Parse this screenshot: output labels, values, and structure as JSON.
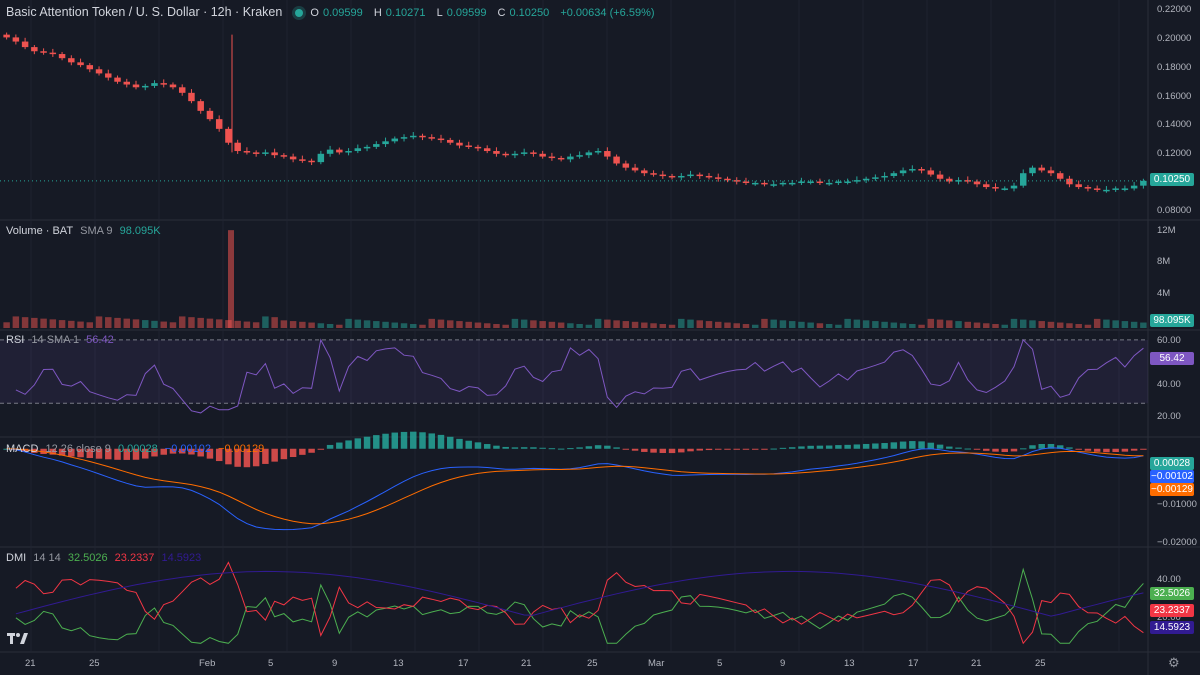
{
  "header": {
    "title": "Basic Attention Token / U. S. Dollar · 12h · Kraken",
    "o_label": "O",
    "o_value": "0.09599",
    "h_label": "H",
    "h_value": "0.10271",
    "l_label": "L",
    "l_value": "0.09599",
    "c_label": "C",
    "c_value": "0.10250",
    "change": "+0.00634 (+6.59%)"
  },
  "price_axis": [
    "0.22000",
    "0.20000",
    "0.18000",
    "0.16000",
    "0.14000",
    "0.12000",
    "0.10250",
    "0.08000"
  ],
  "last_price_tag": "0.10250",
  "volume": {
    "label": "Volume · BAT",
    "sma_label": "SMA 9",
    "sma_value": "98.095K",
    "axis": [
      "12M",
      "8M",
      "4M"
    ],
    "tag": "98.095K"
  },
  "rsi": {
    "label": "RSI",
    "params": "14 SMA 1",
    "value": "56.42",
    "axis": [
      "60.00",
      "40.00",
      "20.00"
    ],
    "tag": "56.42"
  },
  "macd": {
    "label": "MACD",
    "params": "12 26 close 9",
    "hist": "0.00028",
    "macd": "−0.00102",
    "signal": "−0.00129",
    "axis": [
      "−0.01000",
      "−0.02000"
    ],
    "tags": [
      "0.00028",
      "−0.00102",
      "−0.00129"
    ]
  },
  "dmi": {
    "label": "DMI",
    "params": "14 14",
    "plus": "32.5026",
    "minus": "23.2337",
    "adx": "14.5923",
    "axis": [
      "40.00",
      "20.00"
    ],
    "tags": [
      "32.5026",
      "23.2337",
      "14.5923"
    ]
  },
  "time_axis": [
    "21",
    "25",
    "Feb",
    "5",
    "9",
    "13",
    "17",
    "21",
    "25",
    "Mar",
    "5",
    "9",
    "13",
    "17",
    "21",
    "25"
  ],
  "colors": {
    "up": "#26a69a",
    "down": "#ef5350",
    "rsi": "#7e57c2",
    "macd": "#2962ff",
    "signal": "#ff6d00",
    "dmi_plus": "#4caf50",
    "dmi_minus": "#f23645",
    "adx": "#311b92"
  },
  "chart_data": {
    "type": "line",
    "symbol": "BAT/USD",
    "interval": "12h",
    "price_ylim": [
      0.08,
      0.22
    ],
    "close": [
      0.206,
      0.203,
      0.199,
      0.196,
      0.195,
      0.194,
      0.191,
      0.188,
      0.186,
      0.183,
      0.18,
      0.177,
      0.174,
      0.172,
      0.17,
      0.171,
      0.173,
      0.172,
      0.17,
      0.166,
      0.16,
      0.153,
      0.147,
      0.14,
      0.13,
      0.124,
      0.123,
      0.122,
      0.123,
      0.121,
      0.12,
      0.118,
      0.117,
      0.116,
      0.122,
      0.125,
      0.123,
      0.124,
      0.126,
      0.127,
      0.129,
      0.131,
      0.133,
      0.134,
      0.135,
      0.134,
      0.133,
      0.132,
      0.13,
      0.128,
      0.127,
      0.126,
      0.124,
      0.122,
      0.121,
      0.122,
      0.123,
      0.122,
      0.12,
      0.119,
      0.118,
      0.12,
      0.121,
      0.123,
      0.124,
      0.12,
      0.115,
      0.112,
      0.11,
      0.108,
      0.107,
      0.106,
      0.105,
      0.106,
      0.107,
      0.106,
      0.105,
      0.104,
      0.103,
      0.102,
      0.101,
      0.101,
      0.1,
      0.1,
      0.101,
      0.101,
      0.102,
      0.102,
      0.101,
      0.101,
      0.102,
      0.102,
      0.103,
      0.104,
      0.105,
      0.106,
      0.108,
      0.11,
      0.111,
      0.11,
      0.107,
      0.104,
      0.102,
      0.103,
      0.102,
      0.1,
      0.098,
      0.097,
      0.097,
      0.099,
      0.108,
      0.112,
      0.11,
      0.108,
      0.104,
      0.1,
      0.098,
      0.097,
      0.096,
      0.096,
      0.097,
      0.097,
      0.099,
      0.1025
    ],
    "volume_ylim": [
      0,
      13000000
    ],
    "rsi_ylim": [
      10,
      75
    ],
    "macd_ylim": [
      -0.022,
      0.002
    ],
    "dmi_ylim": [
      5,
      50
    ]
  }
}
